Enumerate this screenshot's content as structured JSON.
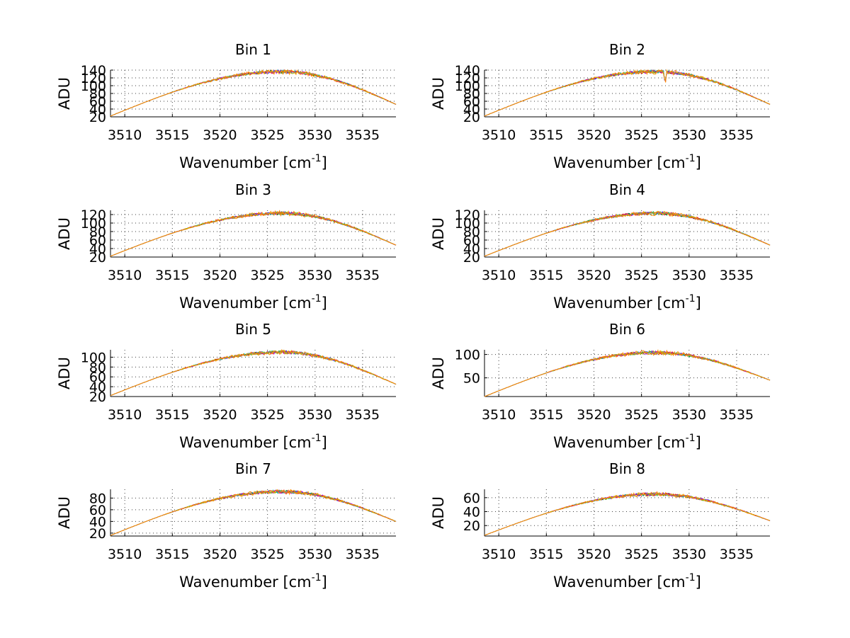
{
  "figure": {
    "background": "#ffffff",
    "series_colors": [
      "#0000ff",
      "#008000",
      "#ff0000",
      "#00bfbf",
      "#bf00bf",
      "#bfbf00",
      "#ff8c00"
    ],
    "xlabel_main": "Wavenumber [cm",
    "xlabel_sup": "-1",
    "xlabel_close": "]",
    "ylabel": "ADU"
  },
  "chart_data": [
    {
      "type": "line",
      "title": "Bin 1",
      "xlim": [
        3508.5,
        3538.5
      ],
      "ylim": [
        20,
        140
      ],
      "xticks": [
        3510,
        3515,
        3520,
        3525,
        3530,
        3535
      ],
      "yticks": [
        20,
        40,
        60,
        80,
        100,
        120,
        140
      ],
      "ytick_labels": [
        "20",
        "40",
        "60",
        "80",
        "100",
        "120",
        "140"
      ],
      "peak": 136,
      "left": 22,
      "right": 52,
      "center": 3526.5,
      "dip": null
    },
    {
      "type": "line",
      "title": "Bin 2",
      "xlim": [
        3508.5,
        3538.5
      ],
      "ylim": [
        20,
        140
      ],
      "xticks": [
        3510,
        3515,
        3520,
        3525,
        3530,
        3535
      ],
      "yticks": [
        20,
        40,
        60,
        80,
        100,
        120,
        140
      ],
      "ytick_labels": [
        "20",
        "40",
        "60",
        "80",
        "100",
        "120",
        "140"
      ],
      "peak": 136,
      "left": 22,
      "right": 52,
      "center": 3526.5,
      "dip": {
        "x": 3527.5,
        "depth": 22
      }
    },
    {
      "type": "line",
      "title": "Bin 3",
      "xlim": [
        3508.5,
        3538.5
      ],
      "ylim": [
        20,
        130
      ],
      "xticks": [
        3510,
        3515,
        3520,
        3525,
        3530,
        3535
      ],
      "yticks": [
        20,
        40,
        60,
        80,
        100,
        120
      ],
      "ytick_labels": [
        "20",
        "40",
        "60",
        "80",
        "100",
        "120"
      ],
      "peak": 123,
      "left": 22,
      "right": 48,
      "center": 3526.5,
      "dip": null
    },
    {
      "type": "line",
      "title": "Bin 4",
      "xlim": [
        3508.5,
        3538.5
      ],
      "ylim": [
        20,
        130
      ],
      "xticks": [
        3510,
        3515,
        3520,
        3525,
        3530,
        3535
      ],
      "yticks": [
        20,
        40,
        60,
        80,
        100,
        120
      ],
      "ytick_labels": [
        "20",
        "40",
        "60",
        "80",
        "100",
        "120"
      ],
      "peak": 123,
      "left": 22,
      "right": 48,
      "center": 3526.5,
      "dip": null
    },
    {
      "type": "line",
      "title": "Bin 5",
      "xlim": [
        3508.5,
        3538.5
      ],
      "ylim": [
        20,
        115
      ],
      "xticks": [
        3510,
        3515,
        3520,
        3525,
        3530,
        3535
      ],
      "yticks": [
        20,
        40,
        60,
        80,
        100
      ],
      "ytick_labels": [
        "20",
        "40",
        "60",
        "80",
        "100"
      ],
      "peak": 110,
      "left": 22,
      "right": 45,
      "center": 3526.5,
      "dip": null
    },
    {
      "type": "line",
      "title": "Bin 6",
      "xlim": [
        3508.5,
        3538.5
      ],
      "ylim": [
        10,
        110
      ],
      "xticks": [
        3510,
        3515,
        3520,
        3525,
        3530,
        3535
      ],
      "yticks": [
        50,
        100
      ],
      "ytick_labels": [
        "50",
        "100"
      ],
      "peak": 104,
      "left": 10,
      "right": 45,
      "center": 3526.5,
      "dip": null
    },
    {
      "type": "line",
      "title": "Bin 7",
      "xlim": [
        3508.5,
        3538.5
      ],
      "ylim": [
        15,
        95
      ],
      "xticks": [
        3510,
        3515,
        3520,
        3525,
        3530,
        3535
      ],
      "yticks": [
        20,
        40,
        60,
        80
      ],
      "ytick_labels": [
        "20",
        "40",
        "60",
        "80"
      ],
      "peak": 91,
      "left": 16,
      "right": 40,
      "center": 3526.5,
      "dip": null
    },
    {
      "type": "line",
      "title": "Bin 8",
      "xlim": [
        3508.5,
        3538.5
      ],
      "ylim": [
        5,
        72
      ],
      "xticks": [
        3510,
        3515,
        3520,
        3525,
        3530,
        3535
      ],
      "yticks": [
        20,
        40,
        60
      ],
      "ytick_labels": [
        "20",
        "40",
        "60"
      ],
      "peak": 65,
      "left": 6,
      "right": 27,
      "center": 3526.5,
      "dip": null
    }
  ]
}
